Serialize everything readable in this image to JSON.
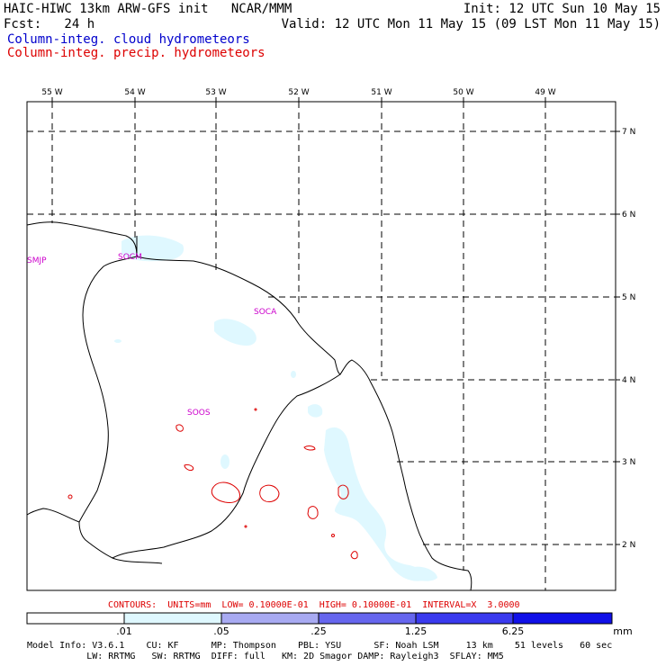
{
  "header": {
    "line1_left": "HAIC-HIWC 13km ARW-GFS init   NCAR/MMM",
    "line1_right": "Init: 12 UTC Sun 10 May 15",
    "line2_left": "Fcst:   24 h",
    "line2_right": "Valid: 12 UTC Mon 11 May 15 (09 LST Mon 11 May 15)",
    "field1": "Column-integ. cloud hydrometeors",
    "field2": "Column-integ. precip. hydrometeors"
  },
  "map": {
    "lon_labels": [
      "55 W",
      "54 W",
      "53 W",
      "52 W",
      "51 W",
      "50 W",
      "49 W"
    ],
    "lat_labels": [
      "7 N",
      "6 N",
      "5 N",
      "4 N",
      "3 N",
      "2 N"
    ],
    "stations": [
      {
        "id": "SMJP"
      },
      {
        "id": "SOCM"
      },
      {
        "id": "SOCA"
      },
      {
        "id": "SOOS"
      }
    ]
  },
  "contours_text": "CONTOURS:  UNITS=mm  LOW= 0.10000E-01  HIGH= 0.10000E-01  INTERVAL=X  3.0000",
  "colorbar": {
    "labels": [
      ".01",
      ".05",
      ".25",
      "1.25",
      "6.25"
    ],
    "units": "mm",
    "colors": [
      "#ffffff",
      "#dff8ff",
      "#a8aaf2",
      "#6666ee",
      "#3a3aee",
      "#1010e8"
    ]
  },
  "model_info": {
    "line1": "Model Info: V3.6.1    CU: KF      MP: Thompson    PBL: YSU      SF: Noah LSM     13 km    51 levels   60 sec",
    "line2": "           LW: RRTMG   SW: RRTMG  DIFF: full   KM: 2D Smagor DAMP: Rayleigh3  SFLAY: MM5"
  },
  "colors": {
    "field1": "#0000cc",
    "field2": "#dd0000",
    "station": "#cc00cc",
    "cloud_fill": "#dff8ff",
    "precip_contour": "#dd0000"
  }
}
